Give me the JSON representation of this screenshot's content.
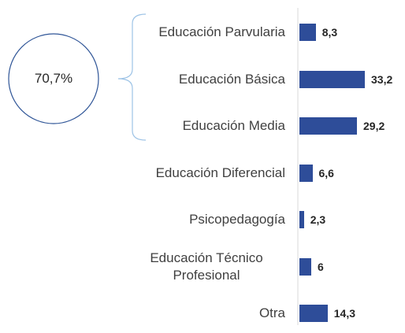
{
  "chart_data": {
    "type": "bar",
    "orientation": "horizontal",
    "categories": [
      "Educación Parvularia",
      "Educación Básica",
      "Educación Media",
      "Educación Diferencial",
      "Psicopedagogía",
      "Educación Técnico Profesional",
      "Otra"
    ],
    "values": [
      8.3,
      33.2,
      29.2,
      6.6,
      2.3,
      6,
      14.3
    ],
    "value_labels": [
      "8,3",
      "33,2",
      "29,2",
      "6,6",
      "2,3",
      "6",
      "14,3"
    ],
    "color": "#2e4d99",
    "annotation": "70,7%"
  }
}
